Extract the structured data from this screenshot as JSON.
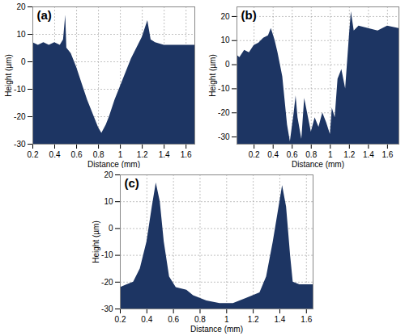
{
  "chart_data": [
    {
      "type": "area",
      "title": "(a)",
      "x_label": "Distance (mm)",
      "y_label": "Height (µm)",
      "color": "#1d3563",
      "grid": true,
      "x": [
        0.2,
        0.25,
        0.3,
        0.35,
        0.4,
        0.45,
        0.48,
        0.5,
        0.51,
        0.55,
        0.6,
        0.65,
        0.7,
        0.75,
        0.8,
        0.83,
        0.87,
        0.9,
        0.95,
        1.0,
        1.05,
        1.1,
        1.15,
        1.2,
        1.25,
        1.28,
        1.32,
        1.4,
        1.5,
        1.6,
        1.68
      ],
      "values": [
        7,
        6,
        7,
        6,
        7,
        6,
        8,
        17,
        5,
        3,
        -2,
        -8,
        -14,
        -19,
        -24,
        -26,
        -23,
        -20,
        -14,
        -9,
        -4,
        1,
        5,
        9,
        15,
        8,
        7,
        6,
        6,
        6,
        6
      ],
      "xlim": [
        0.2,
        1.68
      ],
      "ylim": [
        -30,
        20
      ],
      "xticks": [
        0.2,
        0.4,
        0.6,
        0.8,
        1,
        1.2,
        1.4,
        1.6
      ],
      "yticks": [
        -30,
        -20,
        -10,
        0,
        10,
        20
      ]
    },
    {
      "type": "area",
      "title": "(b)",
      "x_label": "Distance (mm)",
      "y_label": "Height (µm)",
      "color": "#1d3563",
      "grid": true,
      "x": [
        0.02,
        0.05,
        0.1,
        0.15,
        0.2,
        0.25,
        0.3,
        0.35,
        0.38,
        0.42,
        0.45,
        0.5,
        0.55,
        0.58,
        0.62,
        0.64,
        0.66,
        0.7,
        0.73,
        0.76,
        0.8,
        0.84,
        0.88,
        0.92,
        0.96,
        1.0,
        1.02,
        1.05,
        1.08,
        1.12,
        1.16,
        1.2,
        1.22,
        1.25,
        1.3,
        1.4,
        1.5,
        1.6,
        1.72
      ],
      "values": [
        4,
        3,
        6,
        5,
        8,
        9,
        11,
        12,
        15,
        10,
        5,
        -5,
        -25,
        -32,
        -20,
        -13,
        -22,
        -31,
        -14,
        -20,
        -28,
        -22,
        -26,
        -20,
        -24,
        -29,
        -18,
        -22,
        -6,
        -2,
        -10,
        12,
        22,
        14,
        16,
        15,
        14,
        16,
        15
      ],
      "xlim": [
        0.02,
        1.72
      ],
      "ylim": [
        -33,
        24
      ],
      "xticks": [
        0.2,
        0.4,
        0.6,
        0.8,
        1,
        1.2,
        1.4,
        1.6
      ],
      "yticks": [
        -30,
        -20,
        -10,
        0,
        10,
        20
      ]
    },
    {
      "type": "area",
      "title": "(c)",
      "x_label": "Distance (mm)",
      "y_label": "Height (µm)",
      "color": "#1d3563",
      "grid": true,
      "x": [
        0.2,
        0.25,
        0.3,
        0.35,
        0.4,
        0.44,
        0.47,
        0.5,
        0.53,
        0.57,
        0.62,
        0.7,
        0.75,
        0.85,
        0.95,
        1.05,
        1.15,
        1.25,
        1.3,
        1.35,
        1.4,
        1.42,
        1.45,
        1.48,
        1.5,
        1.55,
        1.65
      ],
      "values": [
        -22,
        -21,
        -20,
        -15,
        -5,
        8,
        17,
        10,
        -5,
        -18,
        -22,
        -23,
        -25,
        -27,
        -28,
        -28,
        -26,
        -24,
        -18,
        -5,
        10,
        16,
        8,
        -10,
        -20,
        -21,
        -21
      ],
      "xlim": [
        0.2,
        1.65
      ],
      "ylim": [
        -30,
        20
      ],
      "xticks": [
        0.2,
        0.4,
        0.6,
        0.8,
        1,
        1.2,
        1.4,
        1.6
      ],
      "yticks": [
        -30,
        -20,
        -10,
        0,
        10,
        20
      ]
    }
  ]
}
